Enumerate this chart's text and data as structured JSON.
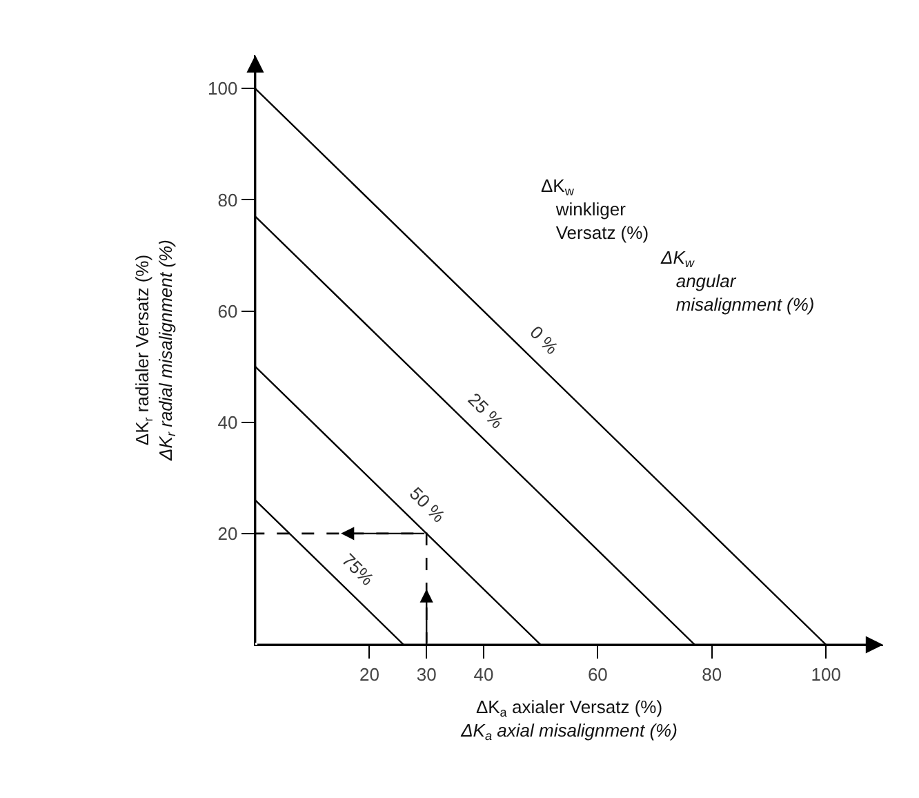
{
  "chart_data": {
    "type": "line",
    "xlabel": "ΔK$_{a}$ axialer Versatz (%)\nΔK$_{a}$ axial misalignment (%)",
    "ylabel": "ΔK$_{r}$ radialer Versatz (%)\nΔK$_{r}$ radial misalignment (%)",
    "xlim": [
      0,
      110
    ],
    "ylim": [
      0,
      106
    ],
    "xticks": [
      20,
      30,
      40,
      60,
      80,
      100
    ],
    "yticks": [
      20,
      40,
      60,
      80,
      100
    ],
    "series": [
      {
        "x": [
          0,
          100
        ],
        "values": [
          100,
          0
        ],
        "color": "#000000"
      },
      {
        "x": [
          0,
          77
        ],
        "values": [
          77,
          0
        ],
        "color": "#000000"
      },
      {
        "x": [
          0,
          50
        ],
        "values": [
          50,
          0
        ],
        "color": "#000000"
      },
      {
        "x": [
          0,
          26
        ],
        "values": [
          26,
          0
        ],
        "color": "#000000"
      },
      {
        "x": [
          30,
          30,
          0
        ],
        "values": [
          0,
          20,
          20
        ],
        "color": "#000000",
        "line_style": "dashed"
      }
    ],
    "annotations": [
      {
        "text": "0 %",
        "x": 48,
        "y": 52
      },
      {
        "text": "25 %",
        "x": 37.7,
        "y": 39.3
      },
      {
        "text": "50 %",
        "x": 27.5,
        "y": 22.5
      },
      {
        "text": "75%",
        "x": 15.3,
        "y": 10.7
      },
      "ΔK$_{w}$\nwinkliger\nVersatz (%)",
      "ΔK$_{w}$\nangular\nmisalignment (%)"
    ]
  }
}
